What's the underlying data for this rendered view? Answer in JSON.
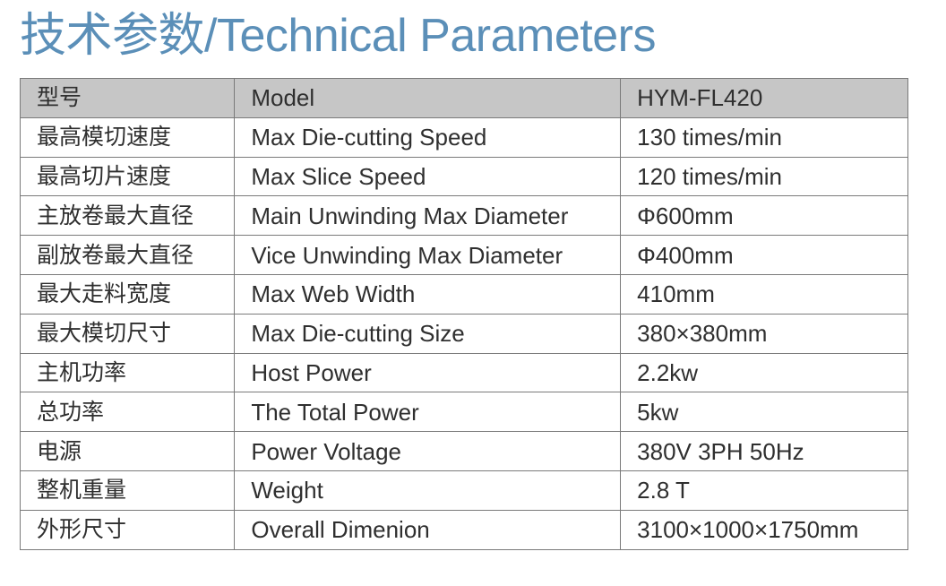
{
  "title": "技术参数/Technical Parameters",
  "header": {
    "cn": "型号",
    "en": "Model",
    "value": "HYM-FL420"
  },
  "rows": [
    {
      "cn": "最高模切速度",
      "en": "Max Die-cutting Speed",
      "value": "130 times/min"
    },
    {
      "cn": "最高切片速度",
      "en": "Max Slice Speed",
      "value": "120 times/min"
    },
    {
      "cn": "主放卷最大直径",
      "en": "Main Unwinding Max Diameter",
      "value": "Φ600mm"
    },
    {
      "cn": "副放卷最大直径",
      "en": "Vice Unwinding Max Diameter",
      "value": "Φ400mm"
    },
    {
      "cn": "最大走料宽度",
      "en": "Max Web Width",
      "value": "410mm"
    },
    {
      "cn": "最大模切尺寸",
      "en": "Max Die-cutting Size",
      "value": "380×380mm"
    },
    {
      "cn": "主机功率",
      "en": "Host Power",
      "value": "2.2kw"
    },
    {
      "cn": "总功率",
      "en": "The Total Power",
      "value": "5kw"
    },
    {
      "cn": "电源",
      "en": "Power Voltage",
      "value": "380V  3PH 50Hz"
    },
    {
      "cn": "整机重量",
      "en": "Weight",
      "value": "2.8 T"
    },
    {
      "cn": "外形尺寸",
      "en": "Overall Dimenion",
      "value": "3100×1000×1750mm"
    }
  ],
  "colors": {
    "title": "#5b8fb8",
    "header_bg": "#c6c6c6",
    "border": "#7a7a7a",
    "text": "#2f2f2f"
  }
}
